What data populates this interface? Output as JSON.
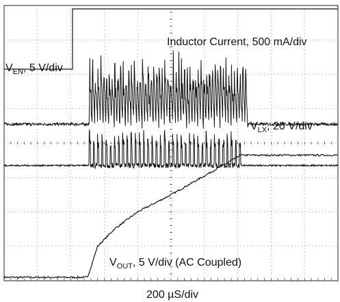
{
  "chart_data": {
    "type": "line",
    "title": "",
    "xlabel": "200 µS/div",
    "ylabel": "",
    "grid": true,
    "x_divisions": 10,
    "y_divisions": 8,
    "x_unit": "div",
    "y_unit": "div",
    "xlim": [
      0,
      10
    ],
    "ylim": [
      0,
      8
    ],
    "channel_labels": {
      "en": {
        "main": "V",
        "sub": "EN",
        "rest": ", 5 V/div"
      },
      "inductor": {
        "text": "Inductor Current, 500 mA/div"
      },
      "lx": {
        "main": "V",
        "sub": "LX",
        "rest": ", 20 V/div"
      },
      "out": {
        "main": "V",
        "sub": "OUT",
        "rest": ", 5 V/div (AC Coupled)"
      }
    },
    "series": [
      {
        "key": "en",
        "x": [
          0,
          2.05,
          2.05,
          10
        ],
        "y": [
          6.15,
          6.15,
          7.9,
          7.9
        ]
      },
      {
        "key": "inductor",
        "type": "burst",
        "baseline": 4.55,
        "burst_start": 2.55,
        "burst_end": 7.3,
        "peak_min": 5.7,
        "peak_max": 6.7
      },
      {
        "key": "lx",
        "type": "pulses",
        "baseline": 3.35,
        "pulse_high": 3.9,
        "pulse_start": 2.55,
        "pulse_end": 7.1,
        "pulse_height_min": 3.85,
        "pulse_height_max": 4.4
      },
      {
        "key": "out",
        "x": [
          0,
          2.5,
          2.8,
          3.3,
          4.0,
          5.0,
          6.0,
          7.0,
          7.05,
          10
        ],
        "y": [
          0.1,
          0.1,
          1.0,
          1.5,
          2.0,
          2.5,
          3.05,
          3.6,
          3.65,
          3.65
        ]
      }
    ]
  }
}
